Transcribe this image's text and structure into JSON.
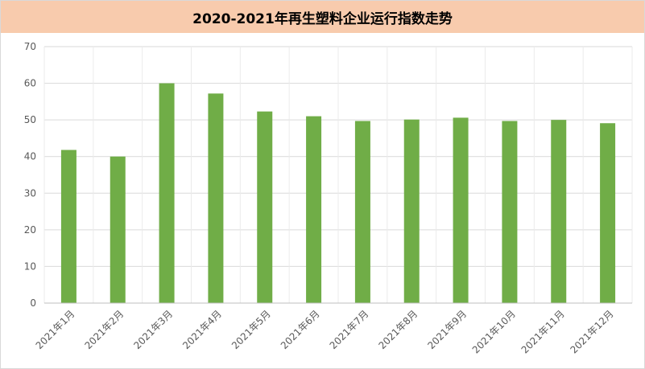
{
  "chart_data": {
    "type": "bar",
    "title": "2020-2021年再生塑料企业运行指数走势",
    "categories": [
      "2021年1月",
      "2021年2月",
      "2021年3月",
      "2021年4月",
      "2021年5月",
      "2021年6月",
      "2021年7月",
      "2021年8月",
      "2021年9月",
      "2021年10月",
      "2021年11月",
      "2021年12月"
    ],
    "values": [
      41.8,
      40.0,
      60.0,
      57.2,
      52.3,
      51.0,
      49.7,
      50.1,
      50.6,
      49.7,
      50.0,
      49.1
    ],
    "ylim": [
      0,
      70
    ],
    "yticks": [
      0,
      10,
      20,
      30,
      40,
      50,
      60,
      70
    ],
    "grid": true,
    "legend": "none",
    "colors": {
      "bar": "#70ad47",
      "title_background": "#f8cbad",
      "grid": "#d9d9d9"
    }
  }
}
